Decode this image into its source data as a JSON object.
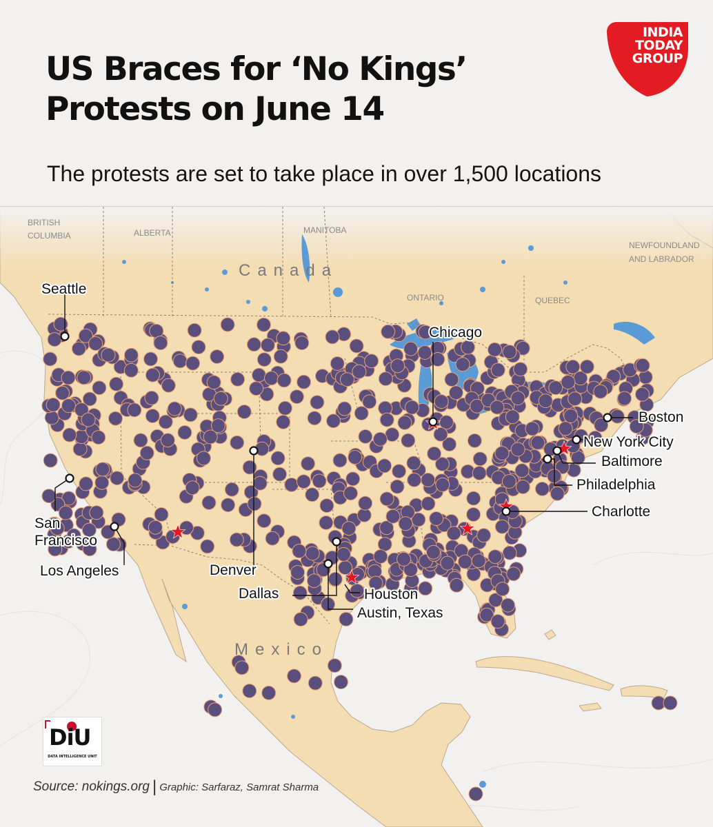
{
  "header": {
    "title_line1": "US Braces for ‘No Kings’",
    "title_line2": "Protests on June 14",
    "subtitle": "The protests are set to take place in over 1,500 locations"
  },
  "logo": {
    "brand_lines": [
      "INDIA",
      "TODAY",
      "GROUP"
    ],
    "brand_color": "#e31b23"
  },
  "colors": {
    "land": "#f4ddb3",
    "water": "#5b9bd5",
    "protest_dot": "#5a4f7c",
    "highlight_star": "#e01b24"
  },
  "regions": {
    "country_labels": [
      "Canada",
      "Mexico"
    ],
    "province_labels": [
      [
        "BRITISH",
        "COLUMBIA"
      ],
      [
        "ALBERTA"
      ],
      [
        "MANITOBA"
      ],
      [
        "ONTARIO"
      ],
      [
        "QUEBEC"
      ],
      [
        "NEWFOUNDLAND",
        "AND LABRADOR"
      ]
    ]
  },
  "cities": [
    {
      "name": "Seattle",
      "lines": [
        "Seattle"
      ]
    },
    {
      "name": "San Francisco",
      "lines": [
        "San",
        "Francisco"
      ]
    },
    {
      "name": "Los Angeles",
      "lines": [
        "Los Angeles"
      ]
    },
    {
      "name": "Denver",
      "lines": [
        "Denver"
      ]
    },
    {
      "name": "Dallas",
      "lines": [
        "Dallas"
      ]
    },
    {
      "name": "Houston",
      "lines": [
        "Houston"
      ]
    },
    {
      "name": "Austin, Texas",
      "lines": [
        "Austin, Texas"
      ]
    },
    {
      "name": "Chicago",
      "lines": [
        "Chicago"
      ]
    },
    {
      "name": "Charlotte",
      "lines": [
        "Charlotte"
      ]
    },
    {
      "name": "Philadelphia",
      "lines": [
        "Philadelphia"
      ]
    },
    {
      "name": "Baltimore",
      "lines": [
        "Baltimore"
      ]
    },
    {
      "name": "New York City",
      "lines": [
        "New York City"
      ]
    },
    {
      "name": "Boston",
      "lines": [
        "Boston"
      ]
    }
  ],
  "footer": {
    "diu_logo": "DiU",
    "diu_tagline": "DATA INTELLIGENCE UNIT",
    "source": "Source: nokings.org",
    "separator": "|",
    "credit": "Graphic: Sarfaraz, Samrat Sharma"
  }
}
